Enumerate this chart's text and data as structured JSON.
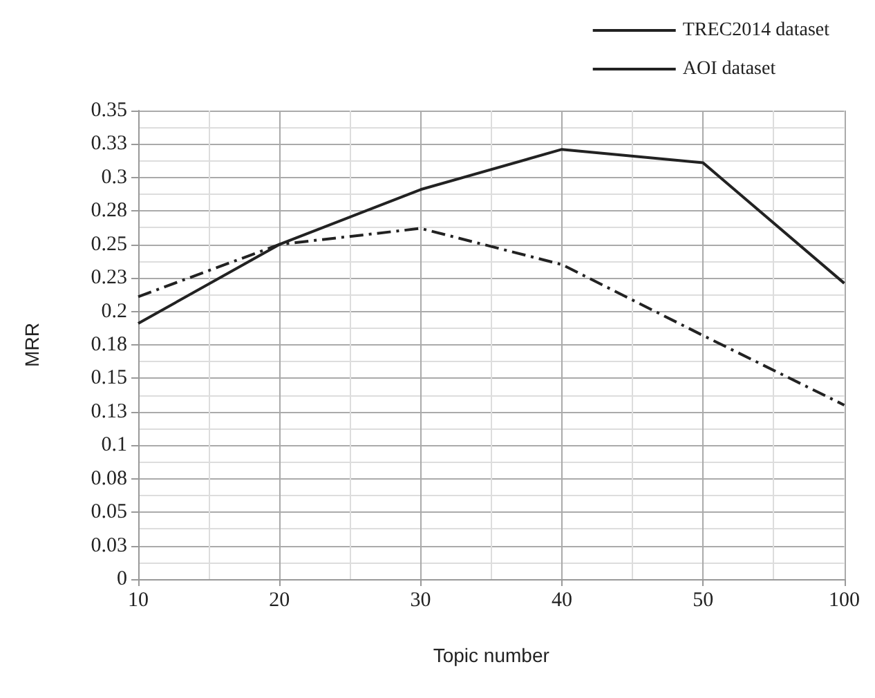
{
  "chart_data": {
    "type": "line",
    "xlabel": "Topic number",
    "ylabel": "MRR",
    "categories": [
      "10",
      "20",
      "30",
      "40",
      "50",
      "100"
    ],
    "series": [
      {
        "name": "TREC2014 dataset",
        "color": "#222222",
        "line_style": "dashed",
        "values": [
          0.211,
          0.25,
          0.262,
          0.235,
          0.182,
          0.13
        ]
      },
      {
        "name": "AOI dataset",
        "color": "#222222",
        "line_style": "solid",
        "values": [
          0.191,
          0.25,
          0.291,
          0.321,
          0.311,
          0.221
        ]
      }
    ],
    "ylim": [
      0,
      0.35
    ],
    "yticks": [
      0,
      {
        "value": 0.025,
        "label": "0.03"
      },
      {
        "value": 0.05,
        "label": "0.05"
      },
      {
        "value": 0.075,
        "label": "0.08"
      },
      {
        "value": 0.1,
        "label": "0.1"
      },
      {
        "value": 0.125,
        "label": "0.13"
      },
      {
        "value": 0.15,
        "label": "0.15"
      },
      {
        "value": 0.175,
        "label": "0.18"
      },
      {
        "value": 0.2,
        "label": "0.2"
      },
      {
        "value": 0.225,
        "label": "0.23"
      },
      {
        "value": 0.25,
        "label": "0.25"
      },
      {
        "value": 0.275,
        "label": "0.28"
      },
      {
        "value": 0.3,
        "label": "0.3"
      },
      {
        "value": 0.325,
        "label": "0.33"
      },
      {
        "value": 0.35,
        "label": "0.35"
      }
    ],
    "grid": true,
    "legend": "top right",
    "marker": "none"
  }
}
